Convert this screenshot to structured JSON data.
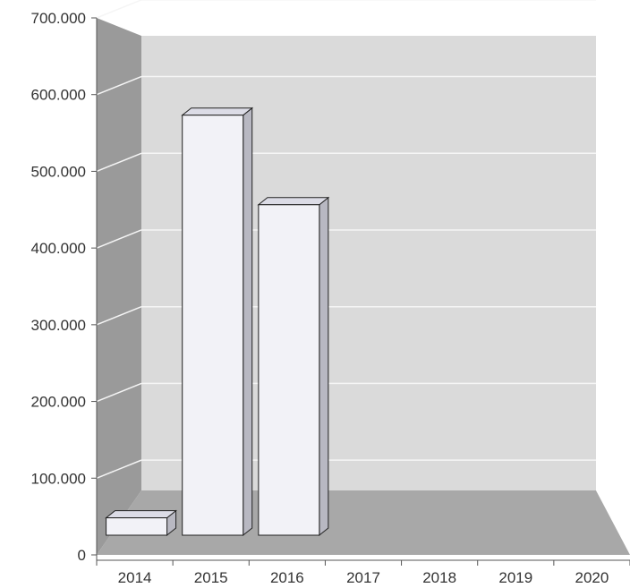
{
  "chart_data": {
    "type": "bar",
    "style": "3d",
    "categories": [
      "2014",
      "2015",
      "2016",
      "2017",
      "2018",
      "2019",
      "2020"
    ],
    "values": [
      25000,
      605000,
      476000,
      0,
      0,
      0,
      0
    ],
    "y_tick_labels": [
      "0",
      "100.000",
      "200.000",
      "300.000",
      "400.000",
      "500.000",
      "600.000",
      "700.000"
    ],
    "ylim": [
      0,
      700000
    ],
    "title": "",
    "xlabel": "",
    "ylabel": "",
    "grid": true,
    "legend": "none",
    "colors": {
      "bar_front": "#f2f2f7",
      "bar_top": "#dcdce6",
      "bar_side": "#b8b8c2",
      "back_wall": "#dadada",
      "side_wall": "#9a9a9a",
      "floor": "#a8a8a8",
      "gridline": "#f5f5f5"
    }
  }
}
